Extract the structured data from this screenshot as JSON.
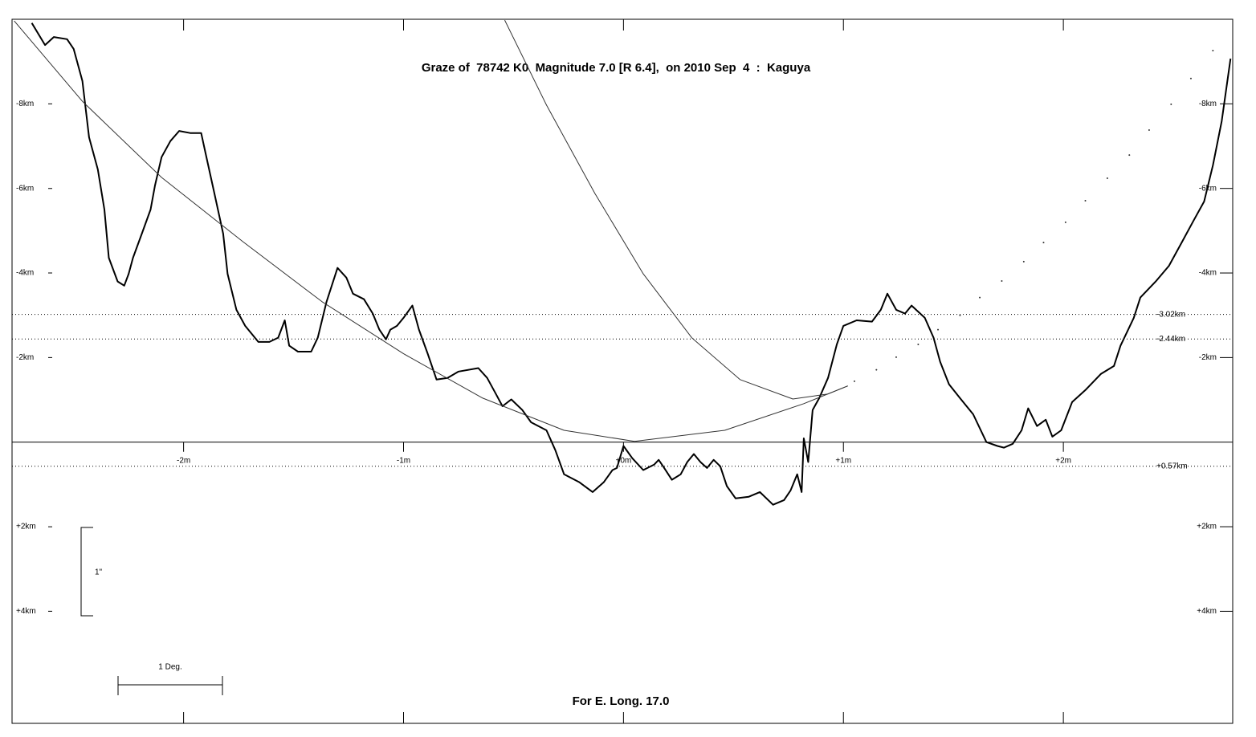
{
  "chart_data": {
    "type": "line",
    "title": "Graze of  78742 K0  Magnitude 7.0 [R 6.4],  on 2010 Sep  4  :  Kaguya",
    "footer": "For E. Long. 17.0",
    "annotations": {
      "arcsec_scale": "1\"",
      "degree_scale": "1 Deg."
    },
    "xlim": [
      -2.78,
      2.77
    ],
    "ylim": [
      6.65,
      -10.0
    ],
    "xticks": [
      {
        "value": -2,
        "label": "-2m"
      },
      {
        "value": -1,
        "label": "-1m"
      },
      {
        "value": 0,
        "label": "+0m"
      },
      {
        "value": 1,
        "label": "+1m"
      },
      {
        "value": 2,
        "label": "+2m"
      }
    ],
    "yticks": [
      {
        "value": -8,
        "label": "-8km"
      },
      {
        "value": -6,
        "label": "-6km"
      },
      {
        "value": -4,
        "label": "-4km"
      },
      {
        "value": -2,
        "label": "-2km"
      },
      {
        "value": 2,
        "label": "+2km"
      },
      {
        "value": 4,
        "label": "+4km"
      }
    ],
    "reference_lines": [
      {
        "value": -3.02,
        "label": "-3.02km"
      },
      {
        "value": -2.44,
        "label": "-2.44km"
      },
      {
        "value": 0.57,
        "label": "+0.57km"
      }
    ],
    "series": [
      {
        "type": "line",
        "color": "#000000",
        "line_width": 2,
        "x": [
          -2.69,
          -2.63,
          -2.59,
          -2.53,
          -2.5,
          -2.46,
          -2.43,
          -2.39,
          -2.36,
          -2.34,
          -2.3,
          -2.27,
          -2.25,
          -2.23,
          -2.19,
          -2.15,
          -2.13,
          -2.1,
          -2.06,
          -2.02,
          -1.97,
          -1.92,
          -1.9,
          -1.86,
          -1.82,
          -1.8,
          -1.76,
          -1.72,
          -1.66,
          -1.61,
          -1.57,
          -1.54,
          -1.52,
          -1.48,
          -1.42,
          -1.39,
          -1.35,
          -1.3,
          -1.26,
          -1.23,
          -1.18,
          -1.14,
          -1.11,
          -1.08,
          -1.06,
          -1.03,
          -1.0,
          -0.96,
          -0.93,
          -0.89,
          -0.85,
          -0.8,
          -0.75,
          -0.66,
          -0.62,
          -0.58,
          -0.55,
          -0.51,
          -0.46,
          -0.42,
          -0.35,
          -0.31,
          -0.27,
          -0.2,
          -0.14,
          -0.09,
          -0.05,
          -0.03,
          0.0,
          0.04,
          0.09,
          0.14,
          0.16,
          0.18,
          0.22,
          0.26,
          0.29,
          0.32,
          0.35,
          0.38,
          0.41,
          0.44,
          0.47,
          0.51,
          0.57,
          0.62,
          0.68,
          0.73,
          0.76,
          0.79,
          0.81,
          0.82,
          0.84,
          0.86,
          0.89,
          0.93,
          0.97,
          1.0,
          1.06,
          1.13,
          1.17,
          1.2,
          1.24,
          1.28,
          1.31,
          1.37,
          1.41,
          1.44,
          1.48,
          1.53,
          1.59,
          1.65,
          1.7,
          1.73,
          1.77,
          1.81,
          1.84,
          1.88,
          1.92,
          1.95,
          1.99,
          2.04,
          2.1,
          2.17,
          2.23,
          2.26,
          2.32,
          2.35,
          2.42,
          2.48,
          2.54,
          2.59,
          2.64,
          2.68,
          2.72,
          2.76
        ],
        "values": [
          -9.91,
          -9.39,
          -9.58,
          -9.53,
          -9.3,
          -8.54,
          -7.21,
          -6.45,
          -5.5,
          -4.36,
          -3.8,
          -3.7,
          -3.98,
          -4.36,
          -4.93,
          -5.5,
          -6.07,
          -6.74,
          -7.12,
          -7.36,
          -7.31,
          -7.31,
          -6.83,
          -5.88,
          -4.93,
          -3.98,
          -3.13,
          -2.75,
          -2.37,
          -2.37,
          -2.47,
          -2.88,
          -2.28,
          -2.14,
          -2.14,
          -2.47,
          -3.32,
          -4.12,
          -3.89,
          -3.51,
          -3.38,
          -3.04,
          -2.66,
          -2.43,
          -2.66,
          -2.75,
          -2.94,
          -3.23,
          -2.66,
          -2.09,
          -1.48,
          -1.52,
          -1.67,
          -1.75,
          -1.52,
          -1.14,
          -0.85,
          -1.01,
          -0.76,
          -0.47,
          -0.28,
          0.19,
          0.76,
          0.95,
          1.18,
          0.95,
          0.66,
          0.61,
          0.09,
          0.38,
          0.66,
          0.53,
          0.42,
          0.57,
          0.89,
          0.76,
          0.47,
          0.28,
          0.47,
          0.61,
          0.42,
          0.57,
          1.04,
          1.33,
          1.29,
          1.18,
          1.48,
          1.37,
          1.14,
          0.76,
          1.18,
          -0.09,
          0.47,
          -0.76,
          -1.04,
          -1.52,
          -2.31,
          -2.75,
          -2.88,
          -2.85,
          -3.13,
          -3.51,
          -3.13,
          -3.04,
          -3.23,
          -2.94,
          -2.47,
          -1.9,
          -1.37,
          -1.04,
          -0.66,
          0.0,
          0.09,
          0.13,
          0.04,
          -0.28,
          -0.8,
          -0.38,
          -0.53,
          -0.13,
          -0.28,
          -0.95,
          -1.23,
          -1.61,
          -1.8,
          -2.28,
          -2.94,
          -3.42,
          -3.8,
          -4.17,
          -4.74,
          -5.22,
          -5.69,
          -6.55,
          -7.59,
          -9.07
        ]
      },
      {
        "type": "line",
        "color": "#333333",
        "line_width": 1,
        "x": [
          -2.77,
          -2.46,
          -2.1,
          -1.73,
          -1.37,
          -1.0,
          -0.64,
          -0.27,
          0.05,
          0.46,
          0.82,
          1.02
        ],
        "values": [
          -9.96,
          -8.06,
          -6.26,
          -4.74,
          -3.32,
          -2.09,
          -1.04,
          -0.28,
          -0.02,
          -0.28,
          -0.91,
          -1.33
        ]
      },
      {
        "type": "line",
        "color": "#333333",
        "line_width": 1,
        "x": [
          -0.54,
          -0.35,
          -0.13,
          0.09,
          0.31,
          0.53,
          0.77,
          0.93,
          1.02
        ],
        "values": [
          -9.98,
          -7.97,
          -5.88,
          -3.98,
          -2.47,
          -1.48,
          -1.02,
          -1.14,
          -1.33
        ]
      },
      {
        "type": "scatter",
        "color": "#333333",
        "line_width": 1,
        "x": [
          1.05,
          1.15,
          1.24,
          1.34,
          1.43,
          1.53,
          1.62,
          1.72,
          1.82,
          1.91,
          2.01,
          2.1,
          2.2,
          2.3,
          2.39,
          2.49,
          2.58,
          2.68
        ],
        "values": [
          -1.44,
          -1.71,
          -2.01,
          -2.31,
          -2.66,
          -3.0,
          -3.42,
          -3.81,
          -4.27,
          -4.72,
          -5.2,
          -5.71,
          -6.24,
          -6.79,
          -7.38,
          -7.99,
          -8.6,
          -9.26
        ]
      }
    ]
  }
}
